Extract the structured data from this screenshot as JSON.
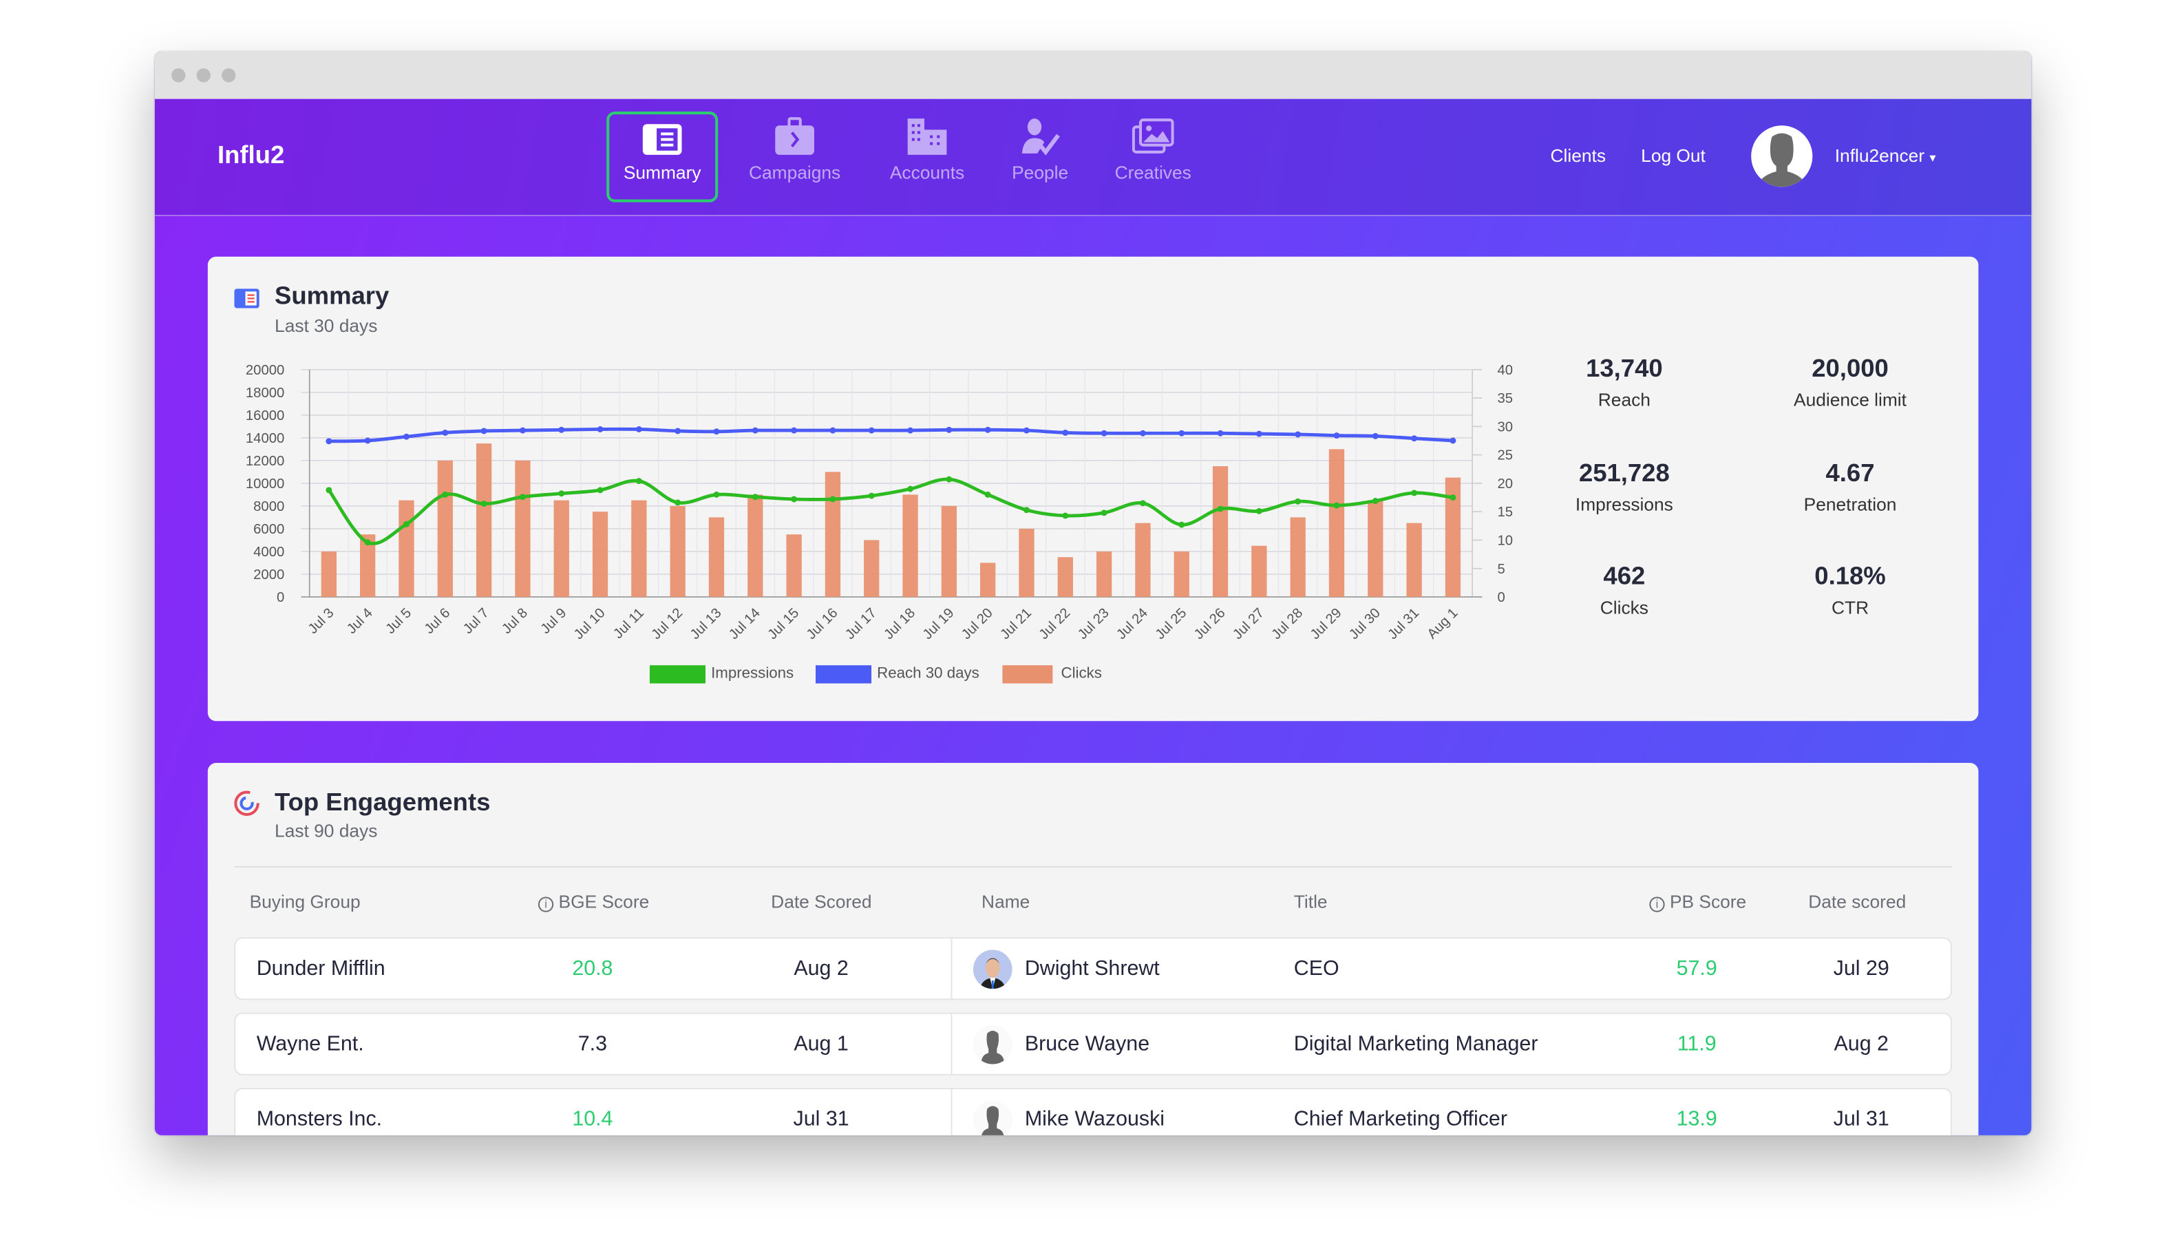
{
  "app": {
    "name": "Influ2"
  },
  "nav": {
    "tabs": [
      {
        "label": "Summary",
        "icon": "summary-icon",
        "active": true
      },
      {
        "label": "Campaigns",
        "icon": "briefcase-icon"
      },
      {
        "label": "Accounts",
        "icon": "building-icon"
      },
      {
        "label": "People",
        "icon": "person-check-icon"
      },
      {
        "label": "Creatives",
        "icon": "images-icon"
      }
    ],
    "links": {
      "clients": "Clients",
      "logout": "Log Out"
    },
    "user": {
      "name": "Influ2encer",
      "caret": "▾"
    }
  },
  "summary": {
    "title": "Summary",
    "subtitle": "Last 30 days",
    "stats": [
      {
        "value": "13,740",
        "label": "Reach"
      },
      {
        "value": "20,000",
        "label": "Audience limit"
      },
      {
        "value": "251,728",
        "label": "Impressions"
      },
      {
        "value": "4.67",
        "label": "Penetration"
      },
      {
        "value": "462",
        "label": "Clicks"
      },
      {
        "value": "0.18%",
        "label": "CTR"
      }
    ]
  },
  "chart_data": {
    "type": "bar+line",
    "categories": [
      "Jul 3",
      "Jul 4",
      "Jul 5",
      "Jul 6",
      "Jul 7",
      "Jul 8",
      "Jul 9",
      "Jul 10",
      "Jul 11",
      "Jul 12",
      "Jul 13",
      "Jul 14",
      "Jul 15",
      "Jul 16",
      "Jul 17",
      "Jul 18",
      "Jul 19",
      "Jul 20",
      "Jul 21",
      "Jul 22",
      "Jul 23",
      "Jul 24",
      "Jul 25",
      "Jul 26",
      "Jul 27",
      "Jul 28",
      "Jul 29",
      "Jul 30",
      "Jul 31",
      "Aug 1"
    ],
    "y_left": {
      "min": 0,
      "max": 20000,
      "step": 2000,
      "ticks": [
        "0",
        "2000",
        "4000",
        "6000",
        "8000",
        "10000",
        "12000",
        "14000",
        "16000",
        "18000",
        "20000"
      ]
    },
    "y_right": {
      "min": 0,
      "max": 40,
      "step": 5,
      "ticks": [
        "0",
        "5",
        "10",
        "15",
        "20",
        "25",
        "30",
        "35",
        "40"
      ]
    },
    "grid": true,
    "legend_position": "bottom",
    "series": [
      {
        "name": "Impressions",
        "type": "line",
        "axis": "left",
        "color": "#2dbb22",
        "values": [
          9400,
          4800,
          6400,
          9000,
          8200,
          8800,
          9100,
          9400,
          10200,
          8300,
          9000,
          8800,
          8600,
          8600,
          8900,
          9500,
          10350,
          9000,
          7650,
          7150,
          7400,
          8250,
          6350,
          7750,
          7550,
          8400,
          8050,
          8450,
          9150,
          8750
        ]
      },
      {
        "name": "Reach 30 days",
        "type": "line",
        "axis": "left",
        "color": "#4a5cf5",
        "values": [
          13700,
          13750,
          14100,
          14450,
          14600,
          14650,
          14700,
          14750,
          14750,
          14600,
          14550,
          14650,
          14650,
          14650,
          14650,
          14650,
          14700,
          14700,
          14650,
          14450,
          14400,
          14400,
          14400,
          14400,
          14350,
          14300,
          14200,
          14150,
          13950,
          13750
        ]
      },
      {
        "name": "Clicks",
        "type": "bar",
        "axis": "right",
        "color": "#e8916f",
        "values": [
          8,
          11,
          17,
          24,
          27,
          24,
          17,
          15,
          17,
          16,
          14,
          18,
          11,
          22,
          10,
          18,
          16,
          6,
          12,
          7,
          8,
          13,
          8,
          23,
          9,
          14,
          26,
          17,
          13,
          21
        ]
      }
    ]
  },
  "engagements": {
    "title": "Top Engagements",
    "subtitle": "Last 90 days",
    "headers": {
      "buying_group": "Buying Group",
      "bge_score": "BGE Score",
      "date_scored": "Date Scored",
      "name": "Name",
      "title": "Title",
      "pb_score": "PB Score",
      "date_scored2": "Date scored"
    },
    "rows": [
      {
        "group": "Dunder Mifflin",
        "bge": "20.8",
        "bge_high": true,
        "date": "Aug 2",
        "name": "Dwight Shrewt",
        "photo": true,
        "title": "CEO",
        "pb": "57.9",
        "pb_high": true,
        "date2": "Jul 29"
      },
      {
        "group": "Wayne Ent.",
        "bge": "7.3",
        "bge_high": false,
        "date": "Aug 1",
        "name": "Bruce Wayne",
        "photo": false,
        "title": "Digital Marketing Manager",
        "pb": "11.9",
        "pb_high": true,
        "date2": "Aug 2"
      },
      {
        "group": "Monsters Inc.",
        "bge": "10.4",
        "bge_high": true,
        "date": "Jul 31",
        "name": "Mike Wazouski",
        "photo": false,
        "title": "Chief Marketing Officer",
        "pb": "13.9",
        "pb_high": true,
        "date2": "Jul 31"
      }
    ]
  },
  "colors": {
    "accent_green": "#2ecc71",
    "nav_purple": "#7a22e4",
    "blue": "#4a5cf5"
  }
}
